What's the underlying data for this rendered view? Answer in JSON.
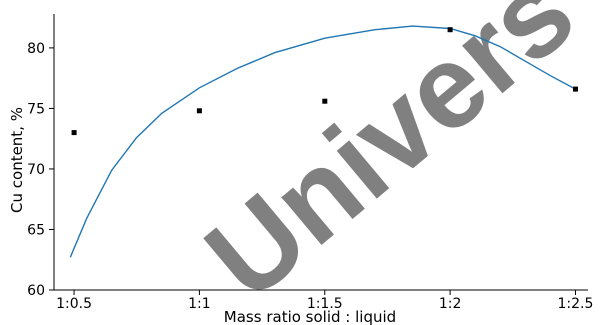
{
  "chart_data": {
    "type": "scatter",
    "title": "",
    "xlabel": "Mass ratio solid : liquid",
    "ylabel": "Cu content, %",
    "x_ticks": [
      {
        "value": 0.5,
        "label": "1:0.5"
      },
      {
        "value": 1.0,
        "label": "1:1"
      },
      {
        "value": 1.5,
        "label": "1:1.5"
      },
      {
        "value": 2.0,
        "label": "1:2"
      },
      {
        "value": 2.5,
        "label": "1:2.5"
      }
    ],
    "y_ticks": [
      60,
      65,
      70,
      75,
      80
    ],
    "xlim": [
      0.42,
      2.55
    ],
    "ylim": [
      60,
      82.8
    ],
    "grid": false,
    "points": [
      {
        "x": 0.5,
        "y": 73.0
      },
      {
        "x": 1.0,
        "y": 74.8
      },
      {
        "x": 1.5,
        "y": 75.6
      },
      {
        "x": 2.0,
        "y": 81.5
      },
      {
        "x": 2.5,
        "y": 76.6
      }
    ],
    "fit_curve": [
      {
        "x": 0.485,
        "y": 62.7
      },
      {
        "x": 0.55,
        "y": 65.9
      },
      {
        "x": 0.65,
        "y": 69.9
      },
      {
        "x": 0.75,
        "y": 72.6
      },
      {
        "x": 0.85,
        "y": 74.6
      },
      {
        "x": 1.0,
        "y": 76.7
      },
      {
        "x": 1.15,
        "y": 78.3
      },
      {
        "x": 1.3,
        "y": 79.6
      },
      {
        "x": 1.5,
        "y": 80.8
      },
      {
        "x": 1.7,
        "y": 81.5
      },
      {
        "x": 1.85,
        "y": 81.8
      },
      {
        "x": 2.0,
        "y": 81.6
      },
      {
        "x": 2.1,
        "y": 81.0
      },
      {
        "x": 2.2,
        "y": 80.1
      },
      {
        "x": 2.3,
        "y": 78.9
      },
      {
        "x": 2.4,
        "y": 77.7
      },
      {
        "x": 2.5,
        "y": 76.6
      }
    ],
    "colors": {
      "curve": "#1f77b4",
      "points": "#000000",
      "watermark": "#808080"
    },
    "watermark": "Univers"
  }
}
